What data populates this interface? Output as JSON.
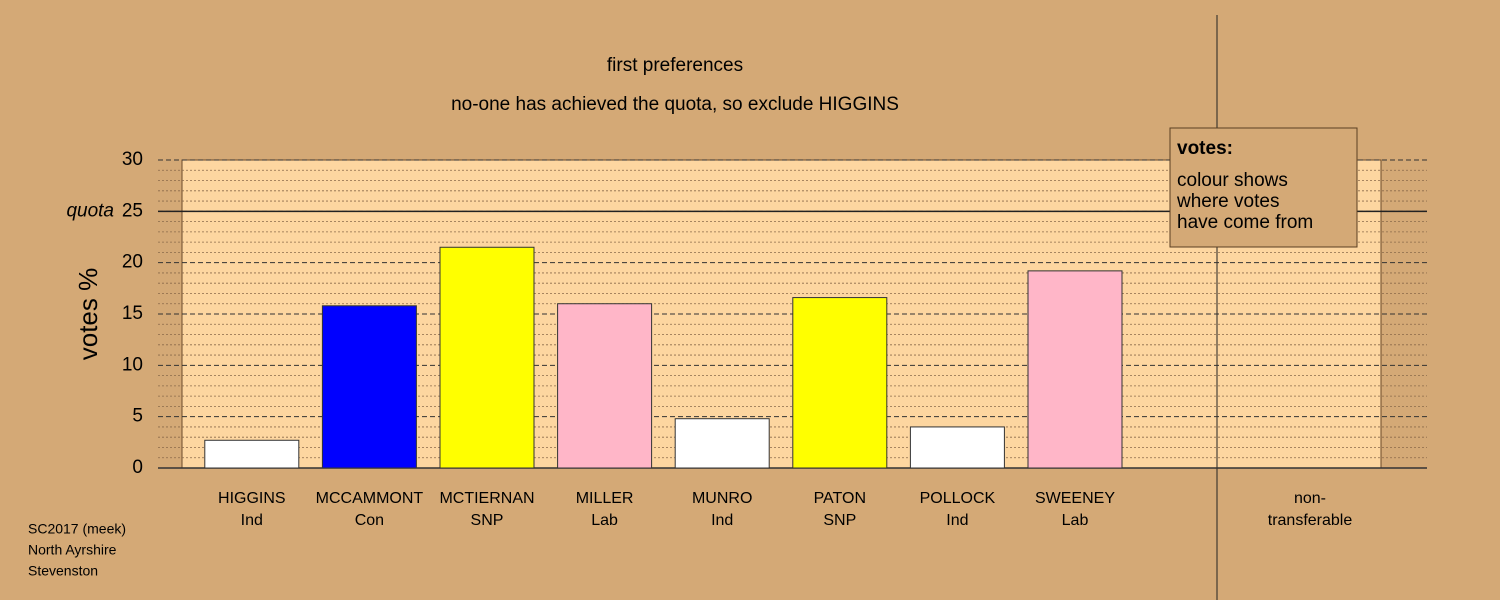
{
  "chart_data": {
    "type": "bar",
    "title": "first preferences",
    "subtitle": "no-one has achieved the quota, so exclude HIGGINS",
    "y_label": "votes %",
    "categories": [
      "HIGGINS",
      "MCCAMMONT",
      "MCTIERNAN",
      "MILLER",
      "MUNRO",
      "PATON",
      "POLLOCK",
      "SWEENEY"
    ],
    "parties": [
      "Ind",
      "Con",
      "SNP",
      "Lab",
      "Ind",
      "SNP",
      "Ind",
      "Lab"
    ],
    "values": [
      2.7,
      15.8,
      21.5,
      16.0,
      4.8,
      16.6,
      4.0,
      19.2
    ],
    "colors": [
      "#ffffff",
      "#0000ff",
      "#ffff00",
      "#ffb6c8",
      "#ffffff",
      "#ffff00",
      "#ffffff",
      "#ffb6c8"
    ],
    "non_transferable_label": [
      "non-",
      "transferable"
    ],
    "ylim": [
      0,
      30
    ],
    "yticks": [
      0,
      5,
      10,
      15,
      20,
      25,
      30
    ],
    "minor_yticks": [
      1,
      2,
      3,
      4,
      6,
      7,
      8,
      9,
      11,
      12,
      13,
      14,
      16,
      17,
      18,
      19,
      21,
      22,
      23,
      24,
      26,
      27,
      28,
      29
    ],
    "quota": 25,
    "quota_label": "quota",
    "grid": true,
    "legend": {
      "title": "votes:",
      "lines": [
        "colour shows",
        "where votes",
        "have come from"
      ]
    },
    "footer": [
      "SC2017 (meek)",
      "North Ayrshire",
      "Stevenston"
    ]
  }
}
